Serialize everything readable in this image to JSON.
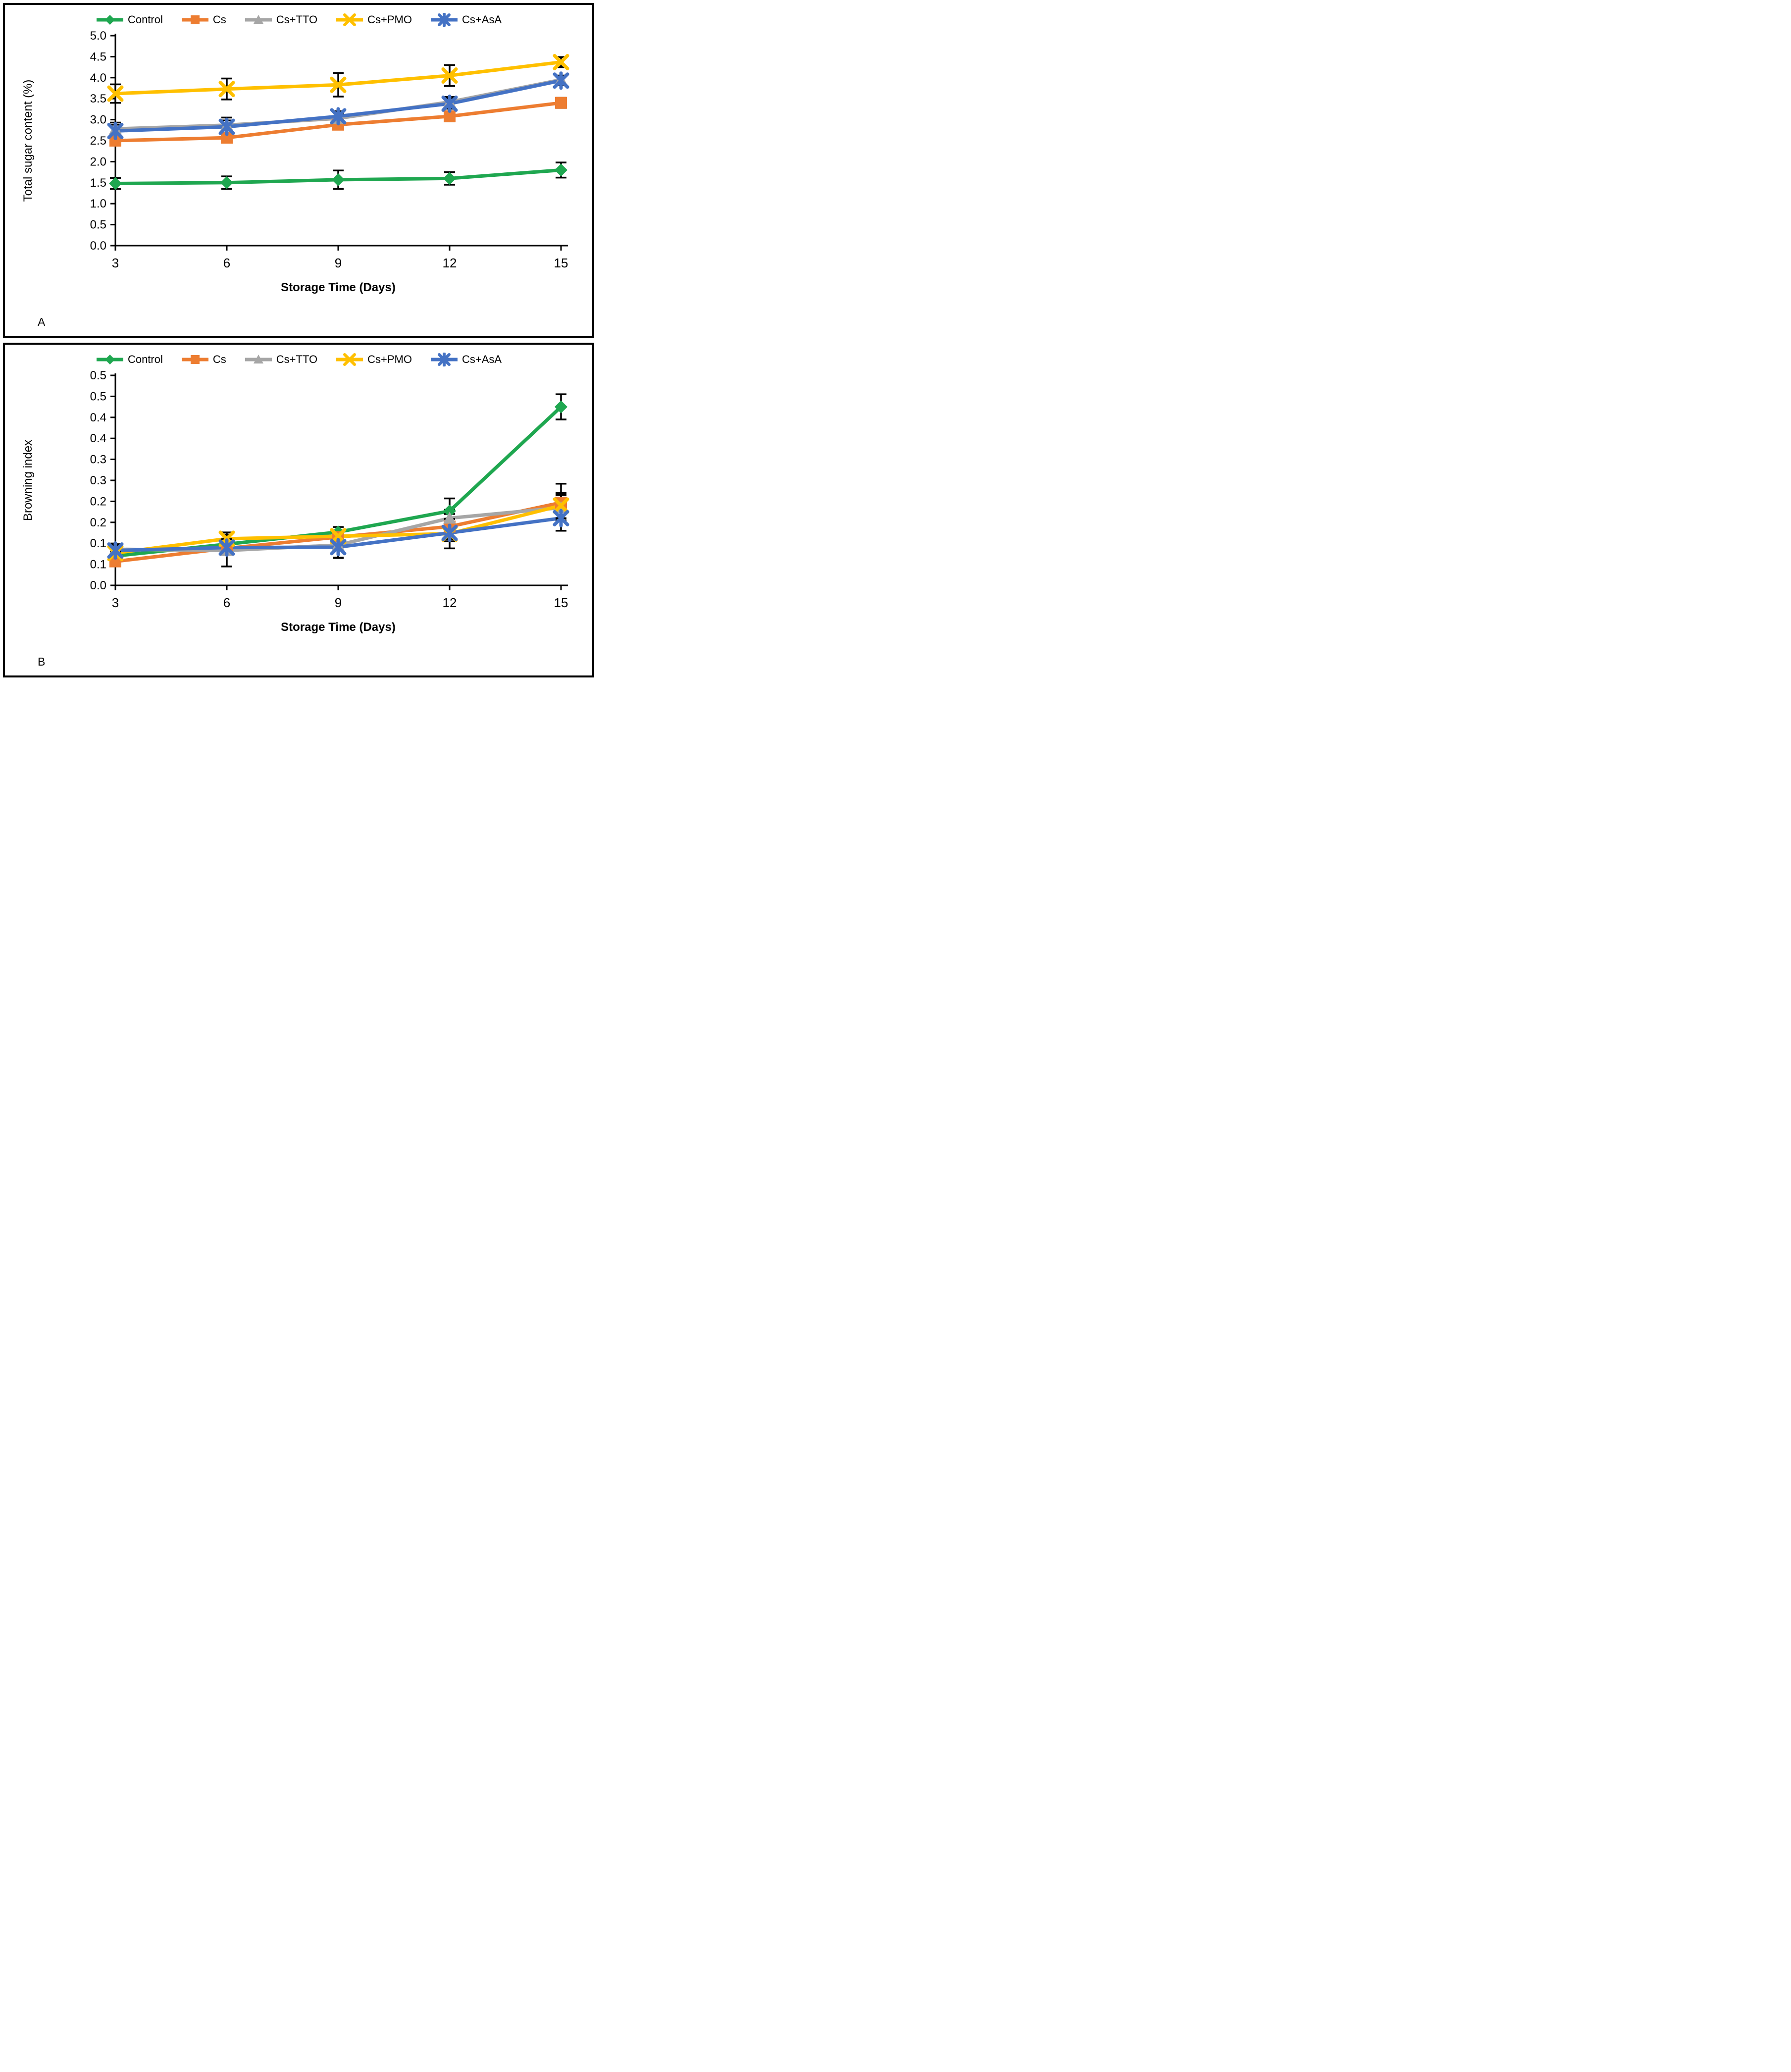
{
  "chart_data": [
    {
      "type": "line",
      "panel_label": "A",
      "xlabel": "Storage Time (Days)",
      "ylabel": "Total sugar content (%)",
      "x": [
        "3",
        "6",
        "9",
        "12",
        "15"
      ],
      "ylim": [
        0,
        5
      ],
      "ytick_step": 0.5,
      "ytick_labels": [
        "5.0",
        "4.5",
        "4.0",
        "3.5",
        "3.0",
        "2.5",
        "2.0",
        "1.5",
        "1.0",
        "0.5",
        "0.0"
      ],
      "grid": false,
      "legend_position": "top",
      "error_bar_color": "#000000",
      "series": [
        {
          "name": "Control",
          "color": "#1FA750",
          "marker": "diamond",
          "values": [
            1.48,
            1.5,
            1.57,
            1.6,
            1.8
          ],
          "errors": [
            0.13,
            0.15,
            0.22,
            0.15,
            0.18
          ]
        },
        {
          "name": "Cs",
          "color": "#ED7D31",
          "marker": "square",
          "values": [
            2.5,
            2.57,
            2.88,
            3.08,
            3.4
          ],
          "errors": [
            0.1,
            0.12,
            0.1,
            0.12,
            0.12
          ]
        },
        {
          "name": "Cs+TTO",
          "color": "#A6A6A6",
          "marker": "triangle",
          "values": [
            2.78,
            2.87,
            3.03,
            3.42,
            3.95
          ],
          "errors": [
            0.15,
            0.18,
            0.12,
            0.12,
            0.1
          ]
        },
        {
          "name": "Cs+PMO",
          "color": "#FFC000",
          "marker": "x",
          "values": [
            3.62,
            3.73,
            3.83,
            4.05,
            4.37
          ],
          "errors": [
            0.22,
            0.25,
            0.28,
            0.25,
            0.12
          ]
        },
        {
          "name": "Cs+AsA",
          "color": "#4472C4",
          "marker": "asterisk",
          "values": [
            2.73,
            2.83,
            3.08,
            3.38,
            3.93
          ],
          "errors": [
            0.15,
            0.15,
            0.12,
            0.12,
            0.1
          ]
        }
      ]
    },
    {
      "type": "line",
      "panel_label": "B",
      "xlabel": "Storage Time (Days)",
      "ylabel": "Browning index",
      "x": [
        "3",
        "6",
        "9",
        "12",
        "15"
      ],
      "ylim": [
        0,
        0.5
      ],
      "ytick_step": 0.05,
      "ytick_labels": [
        "0.5",
        "0.5",
        "0.4",
        "0.4",
        "0.3",
        "0.3",
        "0.2",
        "0.2",
        "0.1",
        "0.1",
        "0.0"
      ],
      "grid": false,
      "legend_position": "top",
      "error_bar_color": "#000000",
      "series": [
        {
          "name": "Control",
          "color": "#1FA750",
          "marker": "diamond",
          "values": [
            0.07,
            0.098,
            0.127,
            0.177,
            0.425
          ],
          "errors": [
            0.01,
            0.012,
            0.012,
            0.03,
            0.03
          ]
        },
        {
          "name": "Cs",
          "color": "#ED7D31",
          "marker": "square",
          "values": [
            0.057,
            0.088,
            0.115,
            0.14,
            0.197
          ],
          "errors": [
            0.008,
            0.01,
            0.012,
            0.03,
            0.045
          ]
        },
        {
          "name": "Cs+TTO",
          "color": "#A6A6A6",
          "marker": "triangle",
          "values": [
            0.086,
            0.083,
            0.096,
            0.16,
            0.185
          ],
          "errors": [
            0.012,
            0.038,
            0.03,
            0.02,
            0.03
          ]
        },
        {
          "name": "Cs+PMO",
          "color": "#FFC000",
          "marker": "x",
          "values": [
            0.077,
            0.111,
            0.117,
            0.123,
            0.19
          ],
          "errors": [
            0.01,
            0.015,
            0.012,
            0.035,
            0.03
          ]
        },
        {
          "name": "Cs+AsA",
          "color": "#4472C4",
          "marker": "asterisk",
          "values": [
            0.083,
            0.09,
            0.091,
            0.125,
            0.16
          ],
          "errors": [
            0.012,
            0.01,
            0.026,
            0.02,
            0.03
          ]
        }
      ]
    }
  ]
}
